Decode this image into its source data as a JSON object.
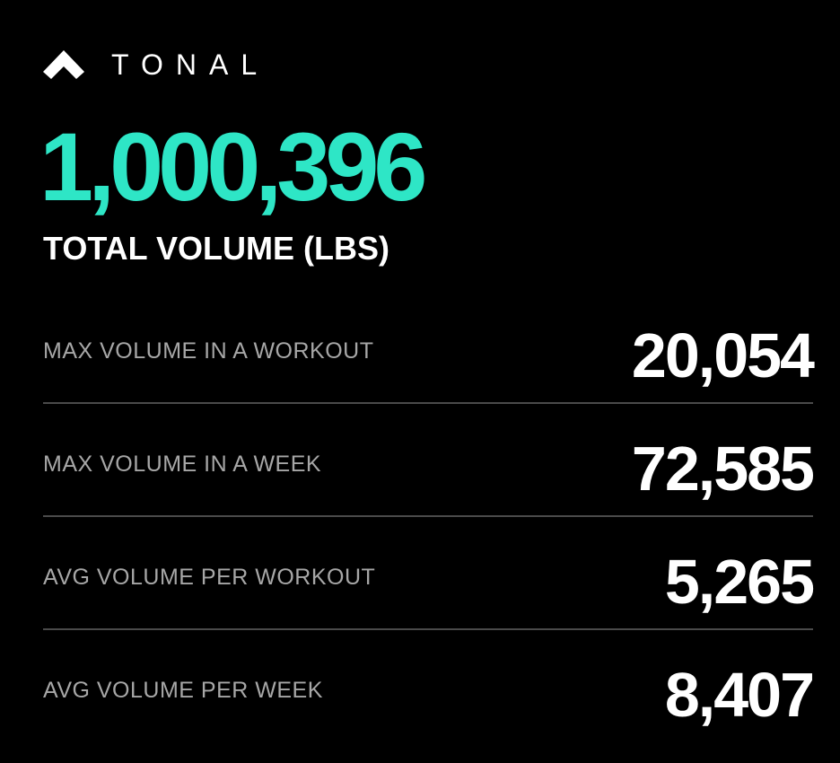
{
  "brand": {
    "logo_icon": "tonal-chevron-icon",
    "name": "TONAL"
  },
  "hero": {
    "value": "1,000,396",
    "label": "TOTAL VOLUME (LBS)"
  },
  "stats": [
    {
      "label": "MAX VOLUME IN A WORKOUT",
      "value": "20,054"
    },
    {
      "label": "MAX VOLUME IN A WEEK",
      "value": "72,585"
    },
    {
      "label": "AVG VOLUME PER WORKOUT",
      "value": "5,265"
    },
    {
      "label": "AVG VOLUME PER WEEK",
      "value": "8,407"
    }
  ],
  "colors": {
    "background": "#000000",
    "accent": "#2ee6c6",
    "label": "#a7a7a7",
    "divider": "#4a4a4a"
  }
}
